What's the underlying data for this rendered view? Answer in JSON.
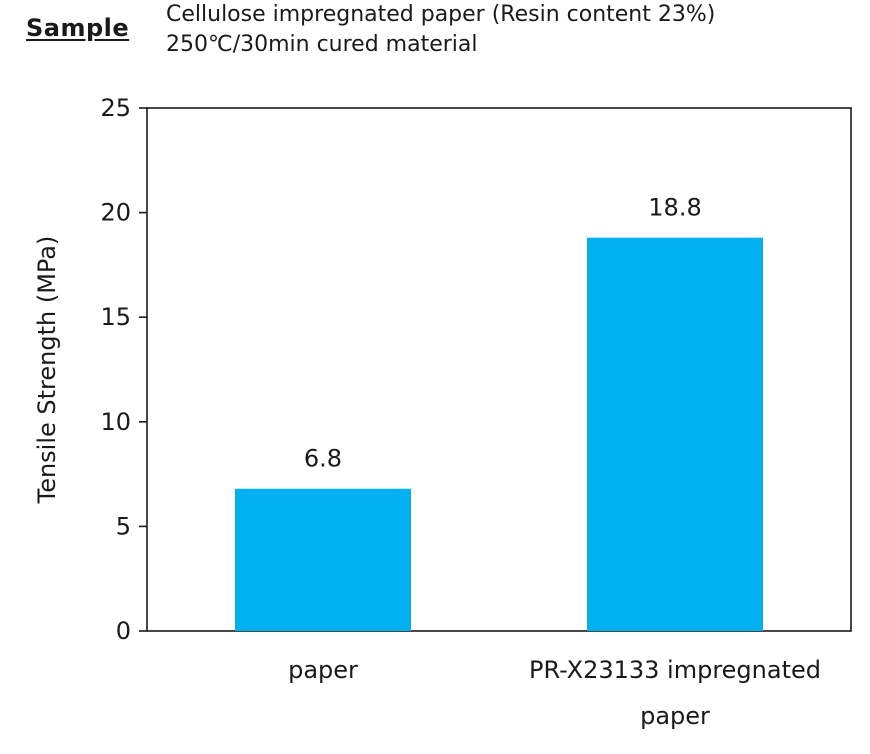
{
  "header": {
    "sample_label": "Sample",
    "description_line1": "Cellulose impregnated paper (Resin content 23%)",
    "description_line2": "250℃/30min cured material"
  },
  "chart_data": {
    "type": "bar",
    "categories": [
      [
        "paper"
      ],
      [
        "PR-X23133 impregnated",
        "paper"
      ]
    ],
    "values": [
      6.8,
      18.8
    ],
    "data_labels": [
      "6.8",
      "18.8"
    ],
    "xlabel": "",
    "ylabel": "Tensile Strength (MPa)",
    "ylim": [
      0,
      25
    ],
    "yticks": [
      0,
      5,
      10,
      15,
      20,
      25
    ],
    "grid": false,
    "legend": "none",
    "bar_color": "#00B0F0",
    "axis_color": "#1a1a1a"
  }
}
